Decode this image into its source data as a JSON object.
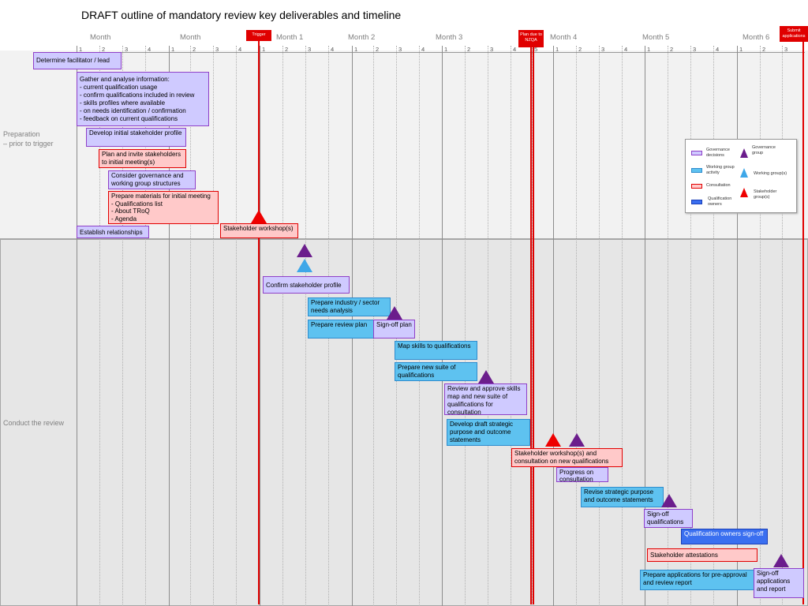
{
  "title": "DRAFT outline of mandatory review key deliverables and timeline",
  "phases": {
    "preparation": "Preparation\n– prior to trigger",
    "conduct": "Conduct the review"
  },
  "months": [
    "Month",
    "Month",
    "Month 1",
    "Month 2",
    "Month 3",
    "Month 4",
    "Month 5",
    "Month 6"
  ],
  "weeks": [
    "1",
    "2",
    "3",
    "4",
    "1",
    "2",
    "3",
    "4",
    "1",
    "2",
    "3",
    "4",
    "1",
    "2",
    "3",
    "4",
    "1",
    "2",
    "3",
    "4",
    "5",
    "1",
    "2",
    "3",
    "4",
    "1",
    "2",
    "3",
    "4",
    "1",
    "2",
    "3"
  ],
  "markers": {
    "trigger": "Trigger",
    "plan_due": "Plan due to NZQA",
    "submit": "Submit applications"
  },
  "tasks": {
    "facilitator": "Determine facilitator / lead",
    "gather": "Gather and analyse information:\n- current qualification usage\n- confirm qualifications included in review\n- skills profiles where available\n- on needs identification / confirmation\n- feedback on current qualifications",
    "stakeholder_profile": "Develop initial stakeholder profile",
    "plan_invite": "Plan and invite stakeholders to initial meeting(s)",
    "governance": "Consider governance and working group structures",
    "materials": "Prepare materials for initial meeting\n- Qualifications list\n- About TRoQ\n- Agenda",
    "relationships": "Establish relationships",
    "workshop": "Stakeholder workshop(s)",
    "confirm_profile": "Confirm stakeholder profile",
    "needs_analysis": "Prepare industry / sector needs analysis",
    "review_plan": "Prepare review plan",
    "signoff_plan": "Sign-off plan",
    "map_skills": "Map skills to qualifications",
    "new_suite": "Prepare new suite of qualifications",
    "review_approve": "Review and approve skills map and new suite of qualifications for consultation",
    "strategic": "Develop draft strategic purpose and outcome statements",
    "workshop_consult": "Stakeholder workshop(s) and consultation on new qualifications",
    "progress": "Progress on consultation",
    "revise": "Revise strategic purpose and outcome statements",
    "signoff_quals": "Sign-off qualifications",
    "owners_signoff": "Qualification owners sign-off",
    "attestations": "Stakeholder attestations",
    "pre_approval": "Prepare applications for pre-approval and review report",
    "signoff_apps": "Sign-off applications and report"
  },
  "legend": {
    "governance_decisions": "Governance decisions",
    "working_group_activity": "Working group activity",
    "consultation": "Consultation",
    "qualification_owners": "Qualification owners",
    "governance_group": "Governance group",
    "working_groups": "Working group(s)",
    "stakeholder_groups": "Stakeholder group(s)"
  },
  "colors": {
    "governance": "#cfcaff",
    "working_group": "#5ec2f0",
    "consultation": "#ffc9c9",
    "owners": "#3a6ff0",
    "marker_red": "#e00000",
    "triangle_purple": "#6b1d8c",
    "triangle_blue": "#3ea7e8",
    "triangle_red": "#ee0000"
  }
}
